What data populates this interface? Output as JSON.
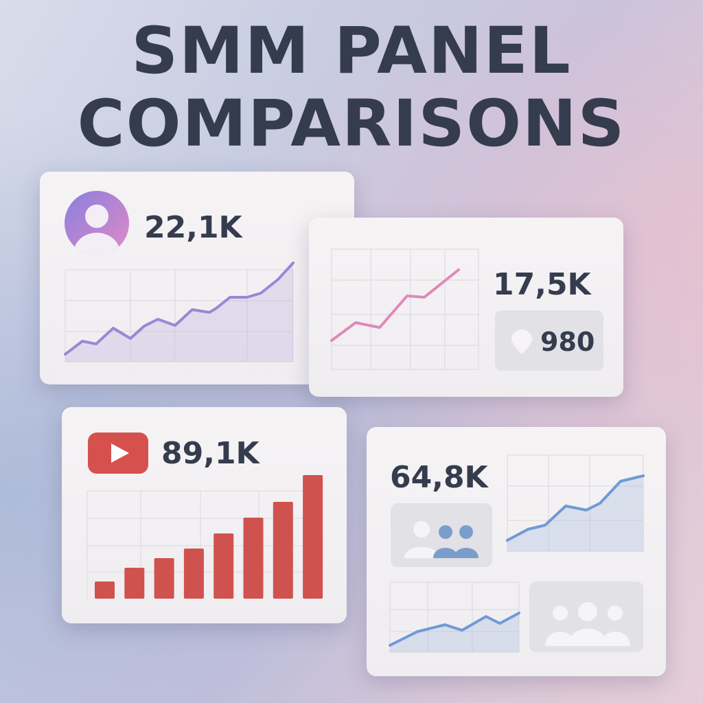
{
  "title": {
    "line1": "SMM PANEL",
    "line2": "COMPARISONS"
  },
  "cards": [
    {
      "icon": "user-avatar-icon",
      "value": "22,1K",
      "accent": "#9b86d6"
    },
    {
      "icon": "location-pin-icon",
      "value": "17,5K",
      "badge_value": "980",
      "accent": "#e088b8"
    },
    {
      "icon": "youtube-play-icon",
      "value": "89,1K",
      "accent": "#d0524f"
    },
    {
      "icon": "people-group-icon",
      "value": "64,8K",
      "accent": "#6f9ad6"
    }
  ]
}
